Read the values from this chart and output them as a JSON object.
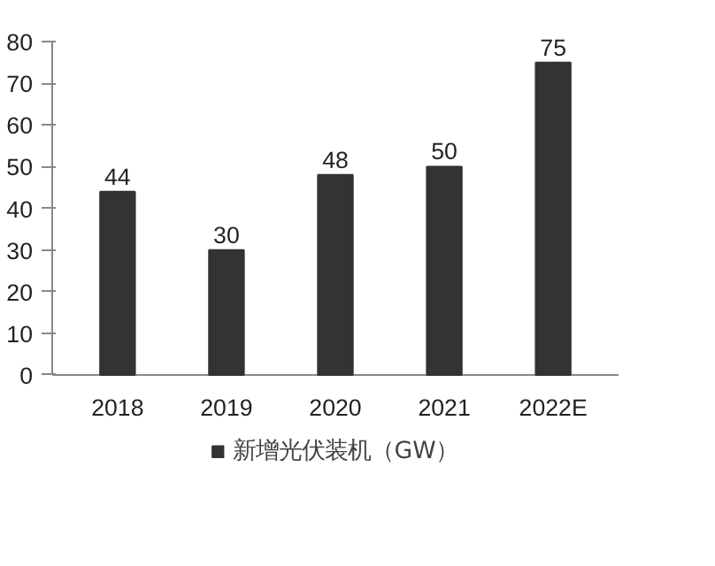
{
  "chart_data": {
    "type": "bar",
    "categories": [
      "2018",
      "2019",
      "2020",
      "2021",
      "2022E"
    ],
    "series": [
      {
        "name": "新增光伏装机（GW）",
        "color": "#333333",
        "values": [
          44,
          30,
          48,
          50,
          75
        ]
      }
    ],
    "ylim": [
      0,
      80
    ],
    "yticks": [
      0,
      10,
      20,
      30,
      40,
      50,
      60,
      70,
      80
    ],
    "data_labels": true,
    "grid": false,
    "legend": "bottom"
  }
}
